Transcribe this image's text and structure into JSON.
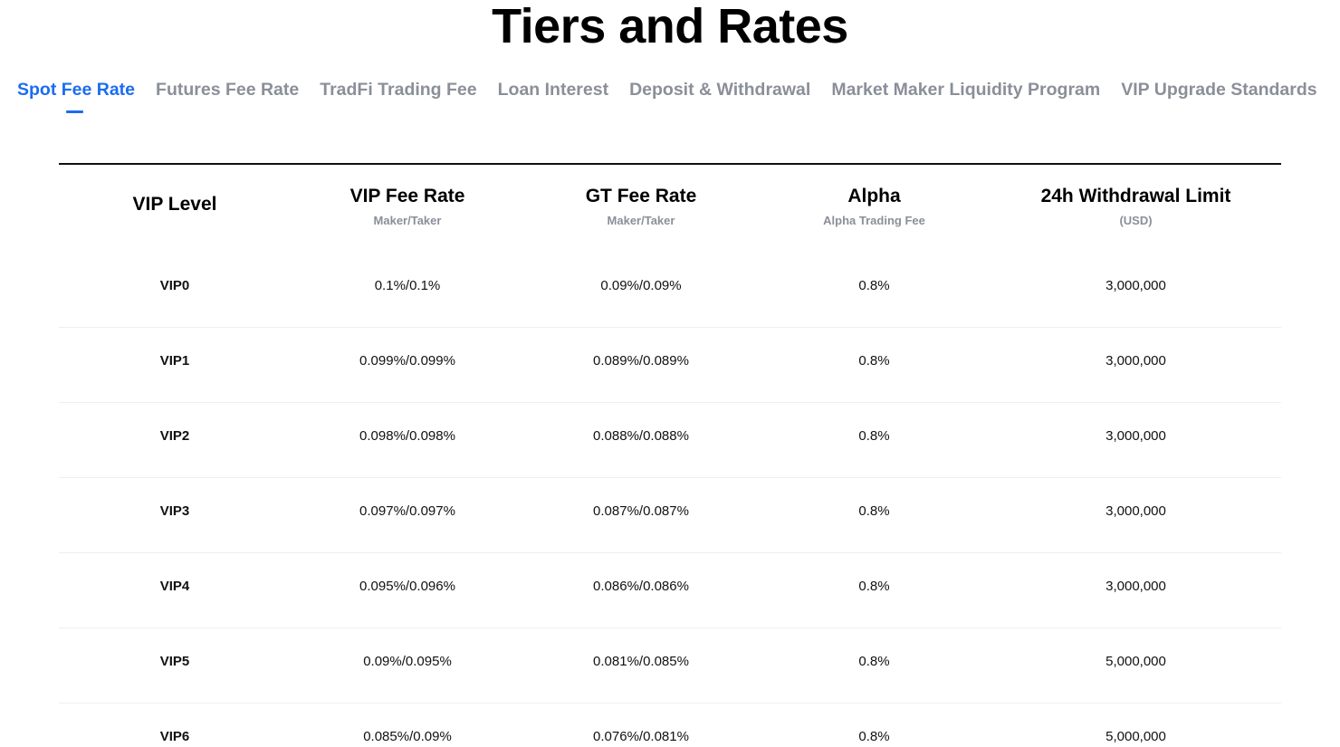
{
  "page": {
    "title": "Tiers and Rates"
  },
  "tabs": [
    {
      "label": "Spot Fee Rate",
      "active": true
    },
    {
      "label": "Futures Fee Rate",
      "active": false
    },
    {
      "label": "TradFi Trading Fee",
      "active": false
    },
    {
      "label": "Loan Interest",
      "active": false
    },
    {
      "label": "Deposit & Withdrawal",
      "active": false
    },
    {
      "label": "Market Maker Liquidity Program",
      "active": false
    },
    {
      "label": "VIP Upgrade Standards",
      "active": false
    }
  ],
  "table": {
    "columns": [
      {
        "title": "VIP Level",
        "subtitle": ""
      },
      {
        "title": "VIP Fee Rate",
        "subtitle": "Maker/Taker"
      },
      {
        "title": "GT Fee Rate",
        "subtitle": "Maker/Taker"
      },
      {
        "title": "Alpha",
        "subtitle": "Alpha Trading Fee"
      },
      {
        "title": "24h Withdrawal Limit",
        "subtitle": "(USD)"
      }
    ],
    "rows": [
      [
        "VIP0",
        "0.1%/0.1%",
        "0.09%/0.09%",
        "0.8%",
        "3,000,000"
      ],
      [
        "VIP1",
        "0.099%/0.099%",
        "0.089%/0.089%",
        "0.8%",
        "3,000,000"
      ],
      [
        "VIP2",
        "0.098%/0.098%",
        "0.088%/0.088%",
        "0.8%",
        "3,000,000"
      ],
      [
        "VIP3",
        "0.097%/0.097%",
        "0.087%/0.087%",
        "0.8%",
        "3,000,000"
      ],
      [
        "VIP4",
        "0.095%/0.096%",
        "0.086%/0.086%",
        "0.8%",
        "3,000,000"
      ],
      [
        "VIP5",
        "0.09%/0.095%",
        "0.081%/0.085%",
        "0.8%",
        "5,000,000"
      ],
      [
        "VIP6",
        "0.085%/0.09%",
        "0.076%/0.081%",
        "0.8%",
        "5,000,000"
      ]
    ]
  },
  "colors": {
    "accent": "#1c6cf2",
    "muted": "#8a8f98",
    "text": "#111111"
  }
}
